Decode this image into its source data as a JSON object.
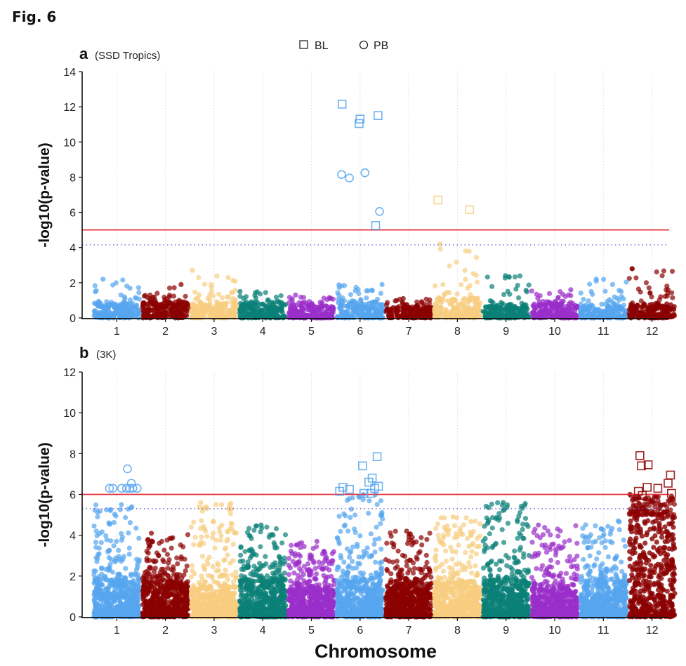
{
  "figure_label": "Fig. 6",
  "legend": [
    {
      "label": "BL",
      "shape": "square"
    },
    {
      "label": "PB",
      "shape": "circle"
    }
  ],
  "chromosome_colors": [
    "#56a5ef",
    "#8b0000",
    "#f7cd80",
    "#0a8077",
    "#9a2ec9",
    "#56a5ef",
    "#8b0000",
    "#f7cd80",
    "#0a8077",
    "#9a2ec9",
    "#56a5ef",
    "#8b0000"
  ],
  "threshold_colors": {
    "significant": "#e8303a",
    "suggestive": "#6a6adf"
  },
  "chart_data": [
    {
      "type": "scatter",
      "panel": "a",
      "title": "a",
      "subtitle": "(SSD Tropics)",
      "xlabel": "",
      "ylabel": "-log10(p-value)",
      "categories": [
        "1",
        "2",
        "3",
        "4",
        "5",
        "6",
        "7",
        "8",
        "9",
        "10",
        "11",
        "12"
      ],
      "ylim": [
        0,
        14
      ],
      "yticks": [
        0,
        2,
        4,
        6,
        8,
        10,
        12,
        14
      ],
      "grid": "vertical-dotted",
      "significance_line": 5.0,
      "suggestive_line": 4.15,
      "background_max_by_chr": [
        2.2,
        1.9,
        2.7,
        1.5,
        1.3,
        1.9,
        1.1,
        4.2,
        2.4,
        1.6,
        2.2,
        2.8
      ],
      "background_typical_by_chr": [
        0.8,
        0.9,
        0.9,
        0.8,
        0.7,
        0.9,
        0.6,
        1.1,
        0.7,
        0.8,
        0.7,
        0.8
      ],
      "hits": [
        {
          "chr": 6,
          "pos": 0.13,
          "y": 12.15,
          "shape": "square"
        },
        {
          "chr": 6,
          "pos": 0.5,
          "y": 11.3,
          "shape": "square"
        },
        {
          "chr": 6,
          "pos": 0.48,
          "y": 11.05,
          "shape": "square"
        },
        {
          "chr": 6,
          "pos": 0.87,
          "y": 11.5,
          "shape": "square"
        },
        {
          "chr": 6,
          "pos": 0.82,
          "y": 5.25,
          "shape": "square"
        },
        {
          "chr": 6,
          "pos": 0.12,
          "y": 8.15,
          "shape": "circle"
        },
        {
          "chr": 6,
          "pos": 0.28,
          "y": 7.95,
          "shape": "circle"
        },
        {
          "chr": 6,
          "pos": 0.6,
          "y": 8.25,
          "shape": "circle"
        },
        {
          "chr": 6,
          "pos": 0.9,
          "y": 6.05,
          "shape": "circle"
        },
        {
          "chr": 8,
          "pos": 0.1,
          "y": 6.7,
          "shape": "square"
        },
        {
          "chr": 8,
          "pos": 0.75,
          "y": 6.15,
          "shape": "square"
        }
      ]
    },
    {
      "type": "scatter",
      "panel": "b",
      "title": "b",
      "subtitle": "(3K)",
      "xlabel": "Chromosome",
      "ylabel": "-log10(p-value)",
      "categories": [
        "1",
        "2",
        "3",
        "4",
        "5",
        "6",
        "7",
        "8",
        "9",
        "10",
        "11",
        "12"
      ],
      "ylim": [
        0,
        12
      ],
      "yticks": [
        0,
        2,
        4,
        6,
        8,
        10,
        12
      ],
      "grid": "vertical-dotted",
      "significance_line": 6.0,
      "suggestive_line": 5.3,
      "background_max_by_chr": [
        5.5,
        4.1,
        5.6,
        4.5,
        3.7,
        6.0,
        4.2,
        4.9,
        5.6,
        4.5,
        4.7,
        6.0
      ],
      "background_dense_by_chr": [
        1.8,
        1.7,
        1.5,
        1.8,
        1.5,
        1.8,
        1.6,
        1.7,
        1.8,
        1.4,
        1.7,
        5.0
      ],
      "hits": [
        {
          "chr": 1,
          "pos": 0.35,
          "y": 6.3,
          "shape": "circle"
        },
        {
          "chr": 1,
          "pos": 0.42,
          "y": 6.3,
          "shape": "circle"
        },
        {
          "chr": 1,
          "pos": 0.6,
          "y": 6.3,
          "shape": "circle"
        },
        {
          "chr": 1,
          "pos": 0.7,
          "y": 6.3,
          "shape": "circle"
        },
        {
          "chr": 1,
          "pos": 0.77,
          "y": 6.3,
          "shape": "circle"
        },
        {
          "chr": 1,
          "pos": 0.83,
          "y": 6.3,
          "shape": "circle"
        },
        {
          "chr": 1,
          "pos": 0.92,
          "y": 6.3,
          "shape": "circle"
        },
        {
          "chr": 1,
          "pos": 0.72,
          "y": 7.25,
          "shape": "circle"
        },
        {
          "chr": 1,
          "pos": 0.8,
          "y": 6.55,
          "shape": "circle"
        },
        {
          "chr": 6,
          "pos": 0.08,
          "y": 6.15,
          "shape": "square"
        },
        {
          "chr": 6,
          "pos": 0.15,
          "y": 6.35,
          "shape": "square"
        },
        {
          "chr": 6,
          "pos": 0.28,
          "y": 6.25,
          "shape": "square"
        },
        {
          "chr": 6,
          "pos": 0.55,
          "y": 7.4,
          "shape": "square"
        },
        {
          "chr": 6,
          "pos": 0.85,
          "y": 7.85,
          "shape": "square"
        },
        {
          "chr": 6,
          "pos": 0.58,
          "y": 6.05,
          "shape": "square"
        },
        {
          "chr": 6,
          "pos": 0.68,
          "y": 6.6,
          "shape": "square"
        },
        {
          "chr": 6,
          "pos": 0.75,
          "y": 6.8,
          "shape": "square"
        },
        {
          "chr": 6,
          "pos": 0.8,
          "y": 6.3,
          "shape": "square"
        },
        {
          "chr": 6,
          "pos": 0.88,
          "y": 6.4,
          "shape": "square"
        },
        {
          "chr": 6,
          "pos": 0.72,
          "y": 6.05,
          "shape": "square"
        },
        {
          "chr": 12,
          "pos": 0.25,
          "y": 7.9,
          "shape": "square"
        },
        {
          "chr": 12,
          "pos": 0.28,
          "y": 7.4,
          "shape": "square"
        },
        {
          "chr": 12,
          "pos": 0.42,
          "y": 7.45,
          "shape": "square"
        },
        {
          "chr": 12,
          "pos": 0.88,
          "y": 6.95,
          "shape": "square"
        },
        {
          "chr": 12,
          "pos": 0.83,
          "y": 6.55,
          "shape": "square"
        },
        {
          "chr": 12,
          "pos": 0.4,
          "y": 6.35,
          "shape": "square"
        },
        {
          "chr": 12,
          "pos": 0.62,
          "y": 6.3,
          "shape": "square"
        },
        {
          "chr": 12,
          "pos": 0.22,
          "y": 6.15,
          "shape": "square"
        },
        {
          "chr": 12,
          "pos": 0.9,
          "y": 6.05,
          "shape": "square"
        },
        {
          "chr": 12,
          "pos": 0.3,
          "y": 5.95,
          "shape": "square"
        }
      ]
    }
  ]
}
